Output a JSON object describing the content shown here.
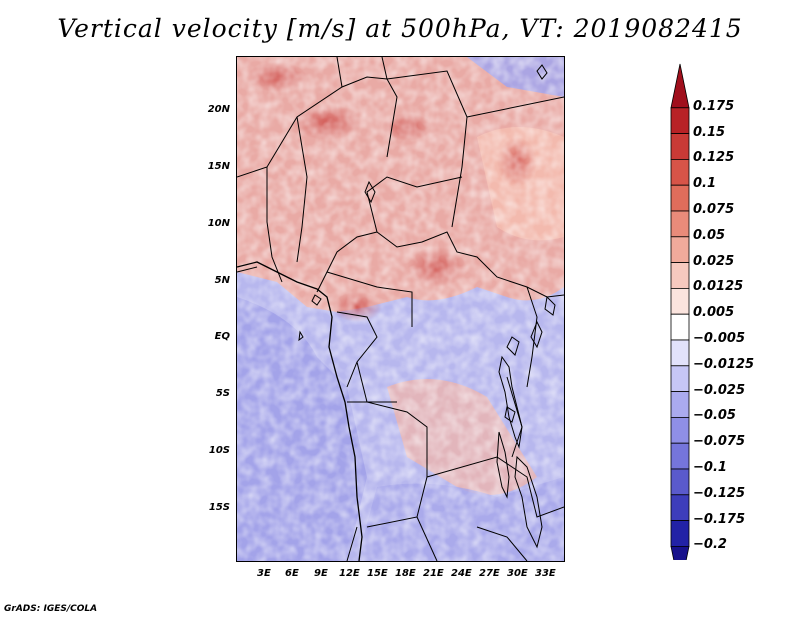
{
  "title": "Vertical velocity [m/s] at 500hPa, VT: 2019082415",
  "credit": "GrADS: IGES/COLA",
  "axes": {
    "lat_labels": [
      "20N",
      "15N",
      "10N",
      "5N",
      "EQ",
      "5S",
      "10S",
      "15S"
    ],
    "lon_labels": [
      "3E",
      "6E",
      "9E",
      "12E",
      "15E",
      "18E",
      "21E",
      "24E",
      "27E",
      "30E",
      "33E"
    ]
  },
  "colorbar": {
    "labels": [
      "0.175",
      "0.15",
      "0.125",
      "0.1",
      "0.075",
      "0.05",
      "0.025",
      "0.0125",
      "0.005",
      "−0.005",
      "−0.0125",
      "−0.025",
      "−0.05",
      "−0.075",
      "−0.1",
      "−0.125",
      "−0.175",
      "−0.2"
    ],
    "colors": [
      "#a00f1c",
      "#b82226",
      "#c93a36",
      "#d75448",
      "#e06d5b",
      "#e98b7a",
      "#f0aa9b",
      "#f6c9bf",
      "#fbe4de",
      "#ffffff",
      "#e2e2fb",
      "#c6c6f6",
      "#aaaaef",
      "#8f8fe6",
      "#7575db",
      "#5a5acc",
      "#3d3dbb",
      "#2222a6",
      "#18128c"
    ]
  }
}
